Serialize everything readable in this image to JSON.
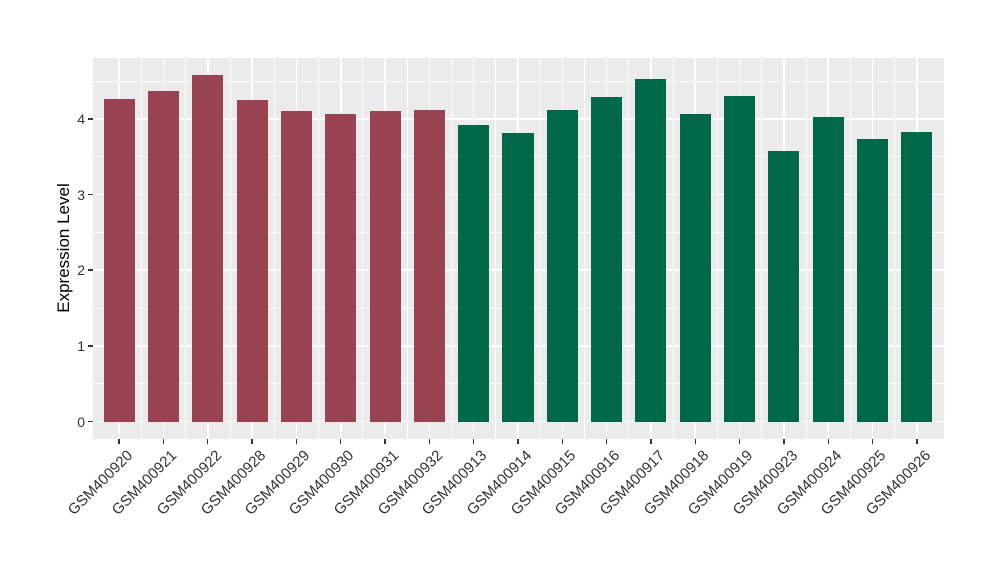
{
  "figure": {
    "background": "#FFFFFF",
    "panel_background": "#EBEBEB",
    "grid_color": "#FFFFFF",
    "tick_mark_color": "#333333",
    "axis_text_color": "#333333",
    "axis_title_color": "#000000"
  },
  "chart_data": {
    "type": "bar",
    "title": "",
    "xlabel": "",
    "ylabel": "Expression Level",
    "categories": [
      "GSM400920",
      "GSM400921",
      "GSM400922",
      "GSM400928",
      "GSM400929",
      "GSM400930",
      "GSM400931",
      "GSM400932",
      "GSM400913",
      "GSM400914",
      "GSM400915",
      "GSM400916",
      "GSM400917",
      "GSM400918",
      "GSM400919",
      "GSM400923",
      "GSM400924",
      "GSM400925",
      "GSM400926"
    ],
    "values": [
      4.26,
      4.37,
      4.58,
      4.25,
      4.1,
      4.07,
      4.1,
      4.11,
      3.92,
      3.81,
      4.11,
      4.29,
      4.52,
      4.07,
      4.3,
      3.58,
      4.02,
      3.73,
      3.83
    ],
    "groups": [
      "group1",
      "group1",
      "group1",
      "group1",
      "group1",
      "group1",
      "group1",
      "group1",
      "group2",
      "group2",
      "group2",
      "group2",
      "group2",
      "group2",
      "group2",
      "group2",
      "group2",
      "group2",
      "group2"
    ],
    "group_colors": {
      "group1": "#9A4453",
      "group2": "#00684A"
    },
    "yticks": [
      0,
      1,
      2,
      3,
      4
    ],
    "ylim": [
      -0.23,
      4.81
    ],
    "bar_width_fraction": 0.7,
    "grid": true,
    "legend_position": "none",
    "x_label_rotation": -45
  }
}
